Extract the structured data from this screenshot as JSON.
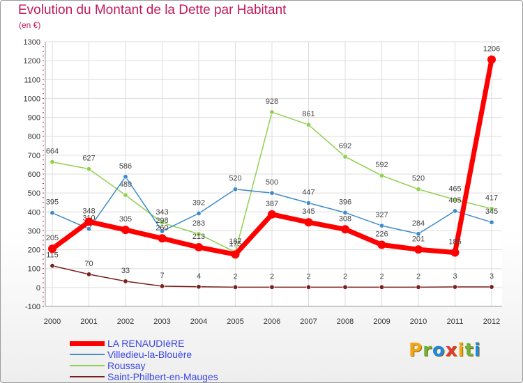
{
  "title": "Evolution du Montant de la Dette par Habitant",
  "subtitle": "(en €)",
  "brand": {
    "text": "Proxiti",
    "letters": [
      {
        "ch": "P",
        "color": "#f2a71b"
      },
      {
        "ch": "r",
        "color": "#6cb33f"
      },
      {
        "ch": "o",
        "color": "#1e88e5"
      },
      {
        "ch": "x",
        "color": "#e53935"
      },
      {
        "ch": "i",
        "color": "#f2a71b"
      },
      {
        "ch": "t",
        "color": "#6cb33f"
      },
      {
        "ch": "i",
        "color": "#1e88e5"
      }
    ]
  },
  "chart_data": {
    "type": "line",
    "categories": [
      "2000",
      "2001",
      "2002",
      "2003",
      "2004",
      "2005",
      "2006",
      "2007",
      "2008",
      "2009",
      "2010",
      "2011",
      "2012"
    ],
    "ylim": [
      -100,
      1300
    ],
    "yticks": [
      "-100",
      "0",
      "100",
      "200",
      "300",
      "400",
      "500",
      "600",
      "700",
      "800",
      "900",
      "1000",
      "1100",
      "1200",
      "1300"
    ],
    "grid": true,
    "legend_position": "bottom-left",
    "series": [
      {
        "name": "Roussay",
        "color": "#8fd14f",
        "values": [
          664,
          627,
          489,
          343,
          283,
          187,
          928,
          861,
          692,
          592,
          520,
          465,
          417
        ],
        "labels": [
          "664",
          "627",
          "489",
          "343",
          "283",
          "187",
          "928",
          "861",
          "692",
          "592",
          "520",
          "465",
          "417"
        ]
      },
      {
        "name": "Villedieu-la-Blouère",
        "color": "#3f8ac9",
        "values": [
          395,
          310,
          586,
          298,
          392,
          520,
          500,
          447,
          396,
          327,
          284,
          405,
          345
        ],
        "labels": [
          "395",
          "310",
          "586",
          "298",
          "392",
          "520",
          "500",
          "447",
          "396",
          "327",
          "284",
          "405",
          "345"
        ]
      },
      {
        "name": "Saint-Philbert-en-Mauges",
        "color": "#7a1e1e",
        "values": [
          115,
          70,
          33,
          7,
          4,
          2,
          2,
          2,
          2,
          2,
          2,
          3,
          3
        ],
        "labels": [
          "115",
          "70",
          "33",
          "7",
          "4",
          "2",
          "2",
          "2",
          "2",
          "2",
          "2",
          "3",
          "3"
        ]
      },
      {
        "name": "LA RENAUDIèRE",
        "color": "#ff0000",
        "values": [
          205,
          348,
          305,
          260,
          213,
          175,
          387,
          345,
          308,
          226,
          201,
          185,
          1206
        ],
        "labels": [
          "205",
          "348",
          "305",
          "260",
          "213",
          "175",
          "387",
          "345",
          "308",
          "226",
          "201",
          "185",
          "1206"
        ]
      }
    ]
  },
  "legend": [
    {
      "label": "LA RENAUDIèRE",
      "color": "#ff0000",
      "thick": true
    },
    {
      "label": "Villedieu-la-Blouère",
      "color": "#3f8ac9",
      "thick": false
    },
    {
      "label": "Roussay",
      "color": "#8fd14f",
      "thick": false
    },
    {
      "label": "Saint-Philbert-en-Mauges",
      "color": "#7a1e1e",
      "thick": false
    }
  ]
}
